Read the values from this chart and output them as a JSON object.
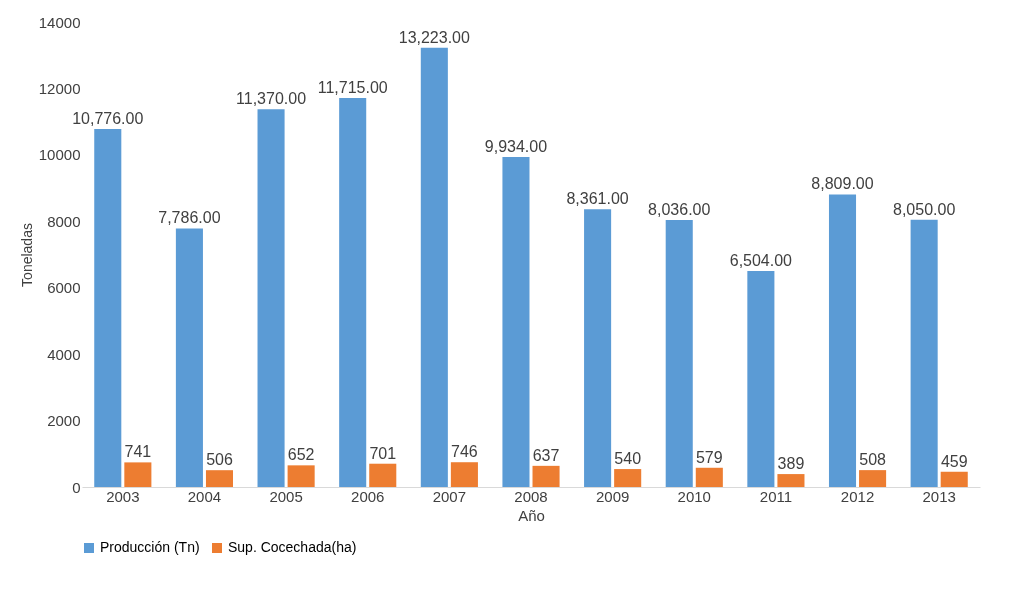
{
  "chart_data": {
    "type": "bar",
    "xlabel": "Año",
    "ylabel": "Toneladas",
    "categories": [
      "2003",
      "2004",
      "2005",
      "2006",
      "2007",
      "2008",
      "2009",
      "2010",
      "2011",
      "2012",
      "2013"
    ],
    "series": [
      {
        "name": "Producción (Tn)",
        "color": "#5b9bd5",
        "values": [
          10776,
          7786,
          11370,
          11715,
          13223,
          9934,
          8361,
          8036,
          6504,
          8809,
          8050
        ],
        "value_labels": [
          "10,776.00",
          "7,786.00",
          "11,370.00",
          "11,715.00",
          "13,223.00",
          "9,934.00",
          "8,361.00",
          "8,036.00",
          "6,504.00",
          "8,809.00",
          "8,050.00"
        ]
      },
      {
        "name": "Sup. Cocechada(ha)",
        "color": "#ed7d31",
        "values": [
          741,
          506,
          652,
          701,
          746,
          637,
          540,
          579,
          389,
          508,
          459
        ],
        "value_labels": [
          "741",
          "506",
          "652",
          "701",
          "746",
          "637",
          "540",
          "579",
          "389",
          "508",
          "459"
        ]
      }
    ],
    "ylim": [
      0,
      14000
    ],
    "yticks": [
      0,
      2000,
      4000,
      6000,
      8000,
      10000,
      12000,
      14000
    ],
    "grid": false,
    "legend": "bottom"
  }
}
